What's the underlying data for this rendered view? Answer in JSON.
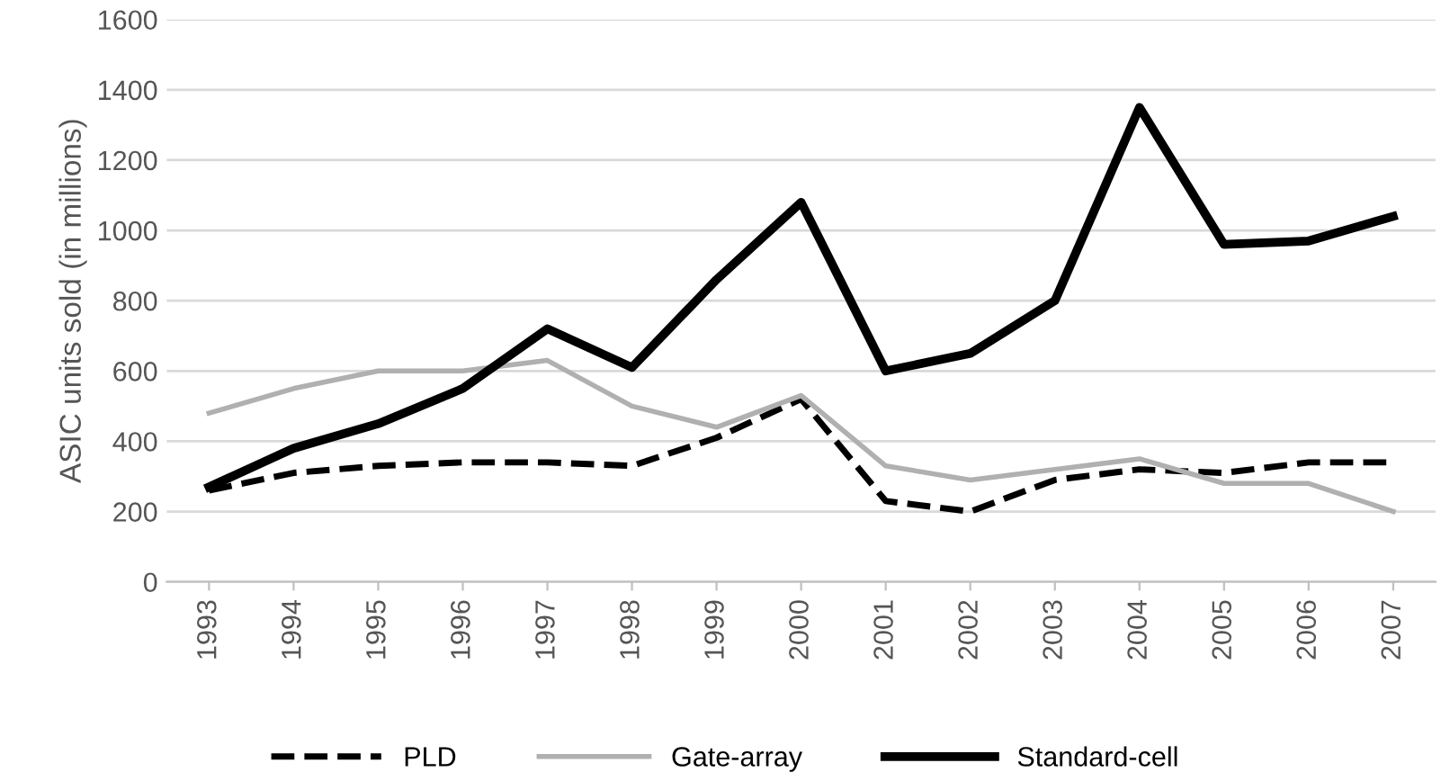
{
  "chart_data": {
    "type": "line",
    "ylabel": "ASIC units sold (in millions)",
    "categories": [
      "1993",
      "1994",
      "1995",
      "1996",
      "1997",
      "1998",
      "1999",
      "2000",
      "2001",
      "2002",
      "2003",
      "2004",
      "2005",
      "2006",
      "2007"
    ],
    "series": [
      {
        "name": "PLD",
        "color": "#000000",
        "line_style": "dashed",
        "values": [
          260,
          310,
          330,
          340,
          340,
          330,
          410,
          520,
          230,
          200,
          290,
          320,
          310,
          340,
          340
        ]
      },
      {
        "name": "Gate-array",
        "color": "#b0b0b0",
        "line_style": "solid",
        "values": [
          480,
          550,
          600,
          600,
          630,
          500,
          440,
          530,
          330,
          290,
          320,
          350,
          280,
          280,
          200
        ]
      },
      {
        "name": "Standard-cell",
        "color": "#000000",
        "line_style": "solid",
        "values": [
          270,
          380,
          450,
          550,
          720,
          610,
          860,
          1080,
          600,
          650,
          800,
          1350,
          960,
          970,
          1040
        ]
      }
    ],
    "ylim": [
      0,
      1600
    ],
    "yticks": [
      0,
      200,
      400,
      600,
      800,
      1000,
      1200,
      1400,
      1600
    ],
    "grid": "y",
    "legend": "bottom"
  }
}
